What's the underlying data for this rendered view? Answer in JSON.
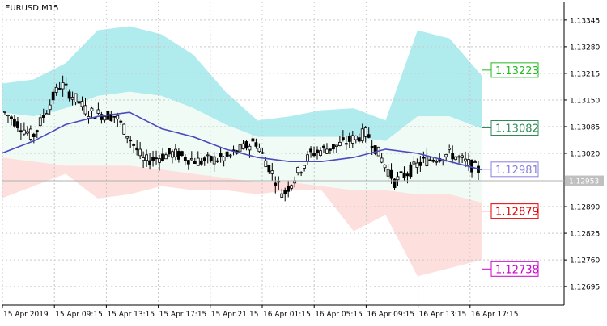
{
  "chart_data": {
    "type": "candlestick",
    "title": "EURUSD,M15",
    "y_ticks": [
      "1.13345",
      "1.13280",
      "1.13215",
      "1.13150",
      "1.13085",
      "1.13020",
      "1.12890",
      "1.12825",
      "1.12760",
      "1.12695"
    ],
    "x_ticks": [
      "15 Apr 2019",
      "15 Apr 09:15",
      "15 Apr 13:15",
      "15 Apr 17:15",
      "15 Apr 21:15",
      "16 Apr 01:15",
      "16 Apr 05:15",
      "16 Apr 09:15",
      "16 Apr 13:15",
      "16 Apr 17:15"
    ],
    "ylim": [
      1.1265,
      1.1339
    ],
    "grid": true,
    "current_price": "1.12953",
    "levels": [
      {
        "label": "1.13223",
        "value": 1.13223,
        "color": "#22bb22"
      },
      {
        "label": "1.13082",
        "value": 1.13082,
        "color": "#2e8b57"
      },
      {
        "label": "1.12981",
        "value": 1.12981,
        "color": "#8a7fdc"
      },
      {
        "label": "1.12879",
        "value": 1.12879,
        "color": "#e00000"
      },
      {
        "label": "1.12738",
        "value": 1.12738,
        "color": "#cc00cc"
      }
    ],
    "colors": {
      "upper_band": "#b0ebee",
      "mid_band": "#f0fbf6",
      "lower_band": "#fde0de",
      "moving_average": "#4b4bbe",
      "candles": "#000000",
      "grid": "#c8c8c8"
    },
    "band_upper": [
      1.1319,
      1.132,
      1.1324,
      1.1332,
      1.1333,
      1.1331,
      1.1326,
      1.1317,
      1.131,
      1.1311,
      1.13125,
      1.1313,
      1.131,
      1.1332,
      1.133,
      1.1321
    ],
    "band_mid_top": [
      1.1312,
      1.1311,
      1.1313,
      1.1316,
      1.1317,
      1.1316,
      1.1313,
      1.1309,
      1.1306,
      1.1306,
      1.1306,
      1.1306,
      1.1305,
      1.1311,
      1.1311,
      1.1308
    ],
    "band_mid_bottom": [
      1.1301,
      1.13,
      1.1299,
      1.1299,
      1.1299,
      1.1298,
      1.1297,
      1.1296,
      1.1295,
      1.1295,
      1.1294,
      1.1293,
      1.1293,
      1.1292,
      1.1292,
      1.129
    ],
    "band_lower": [
      1.1291,
      1.1294,
      1.1297,
      1.1291,
      1.1292,
      1.1294,
      1.1293,
      1.1293,
      1.1292,
      1.1293,
      1.1293,
      1.1283,
      1.1287,
      1.1272,
      1.1274,
      1.1276
    ],
    "moving_average": [
      1.1302,
      1.1305,
      1.1309,
      1.1311,
      1.1312,
      1.1308,
      1.1306,
      1.1303,
      1.1301,
      1.13,
      1.13,
      1.1301,
      1.1303,
      1.1302,
      1.13,
      1.1298
    ],
    "price_path": [
      1.1312,
      1.1306,
      1.1319,
      1.1312,
      1.1311,
      1.13,
      1.1302,
      1.13,
      1.1301,
      1.1305,
      1.1292,
      1.1302,
      1.1304,
      1.1307,
      1.1295,
      1.13,
      1.1302,
      1.1298
    ]
  }
}
